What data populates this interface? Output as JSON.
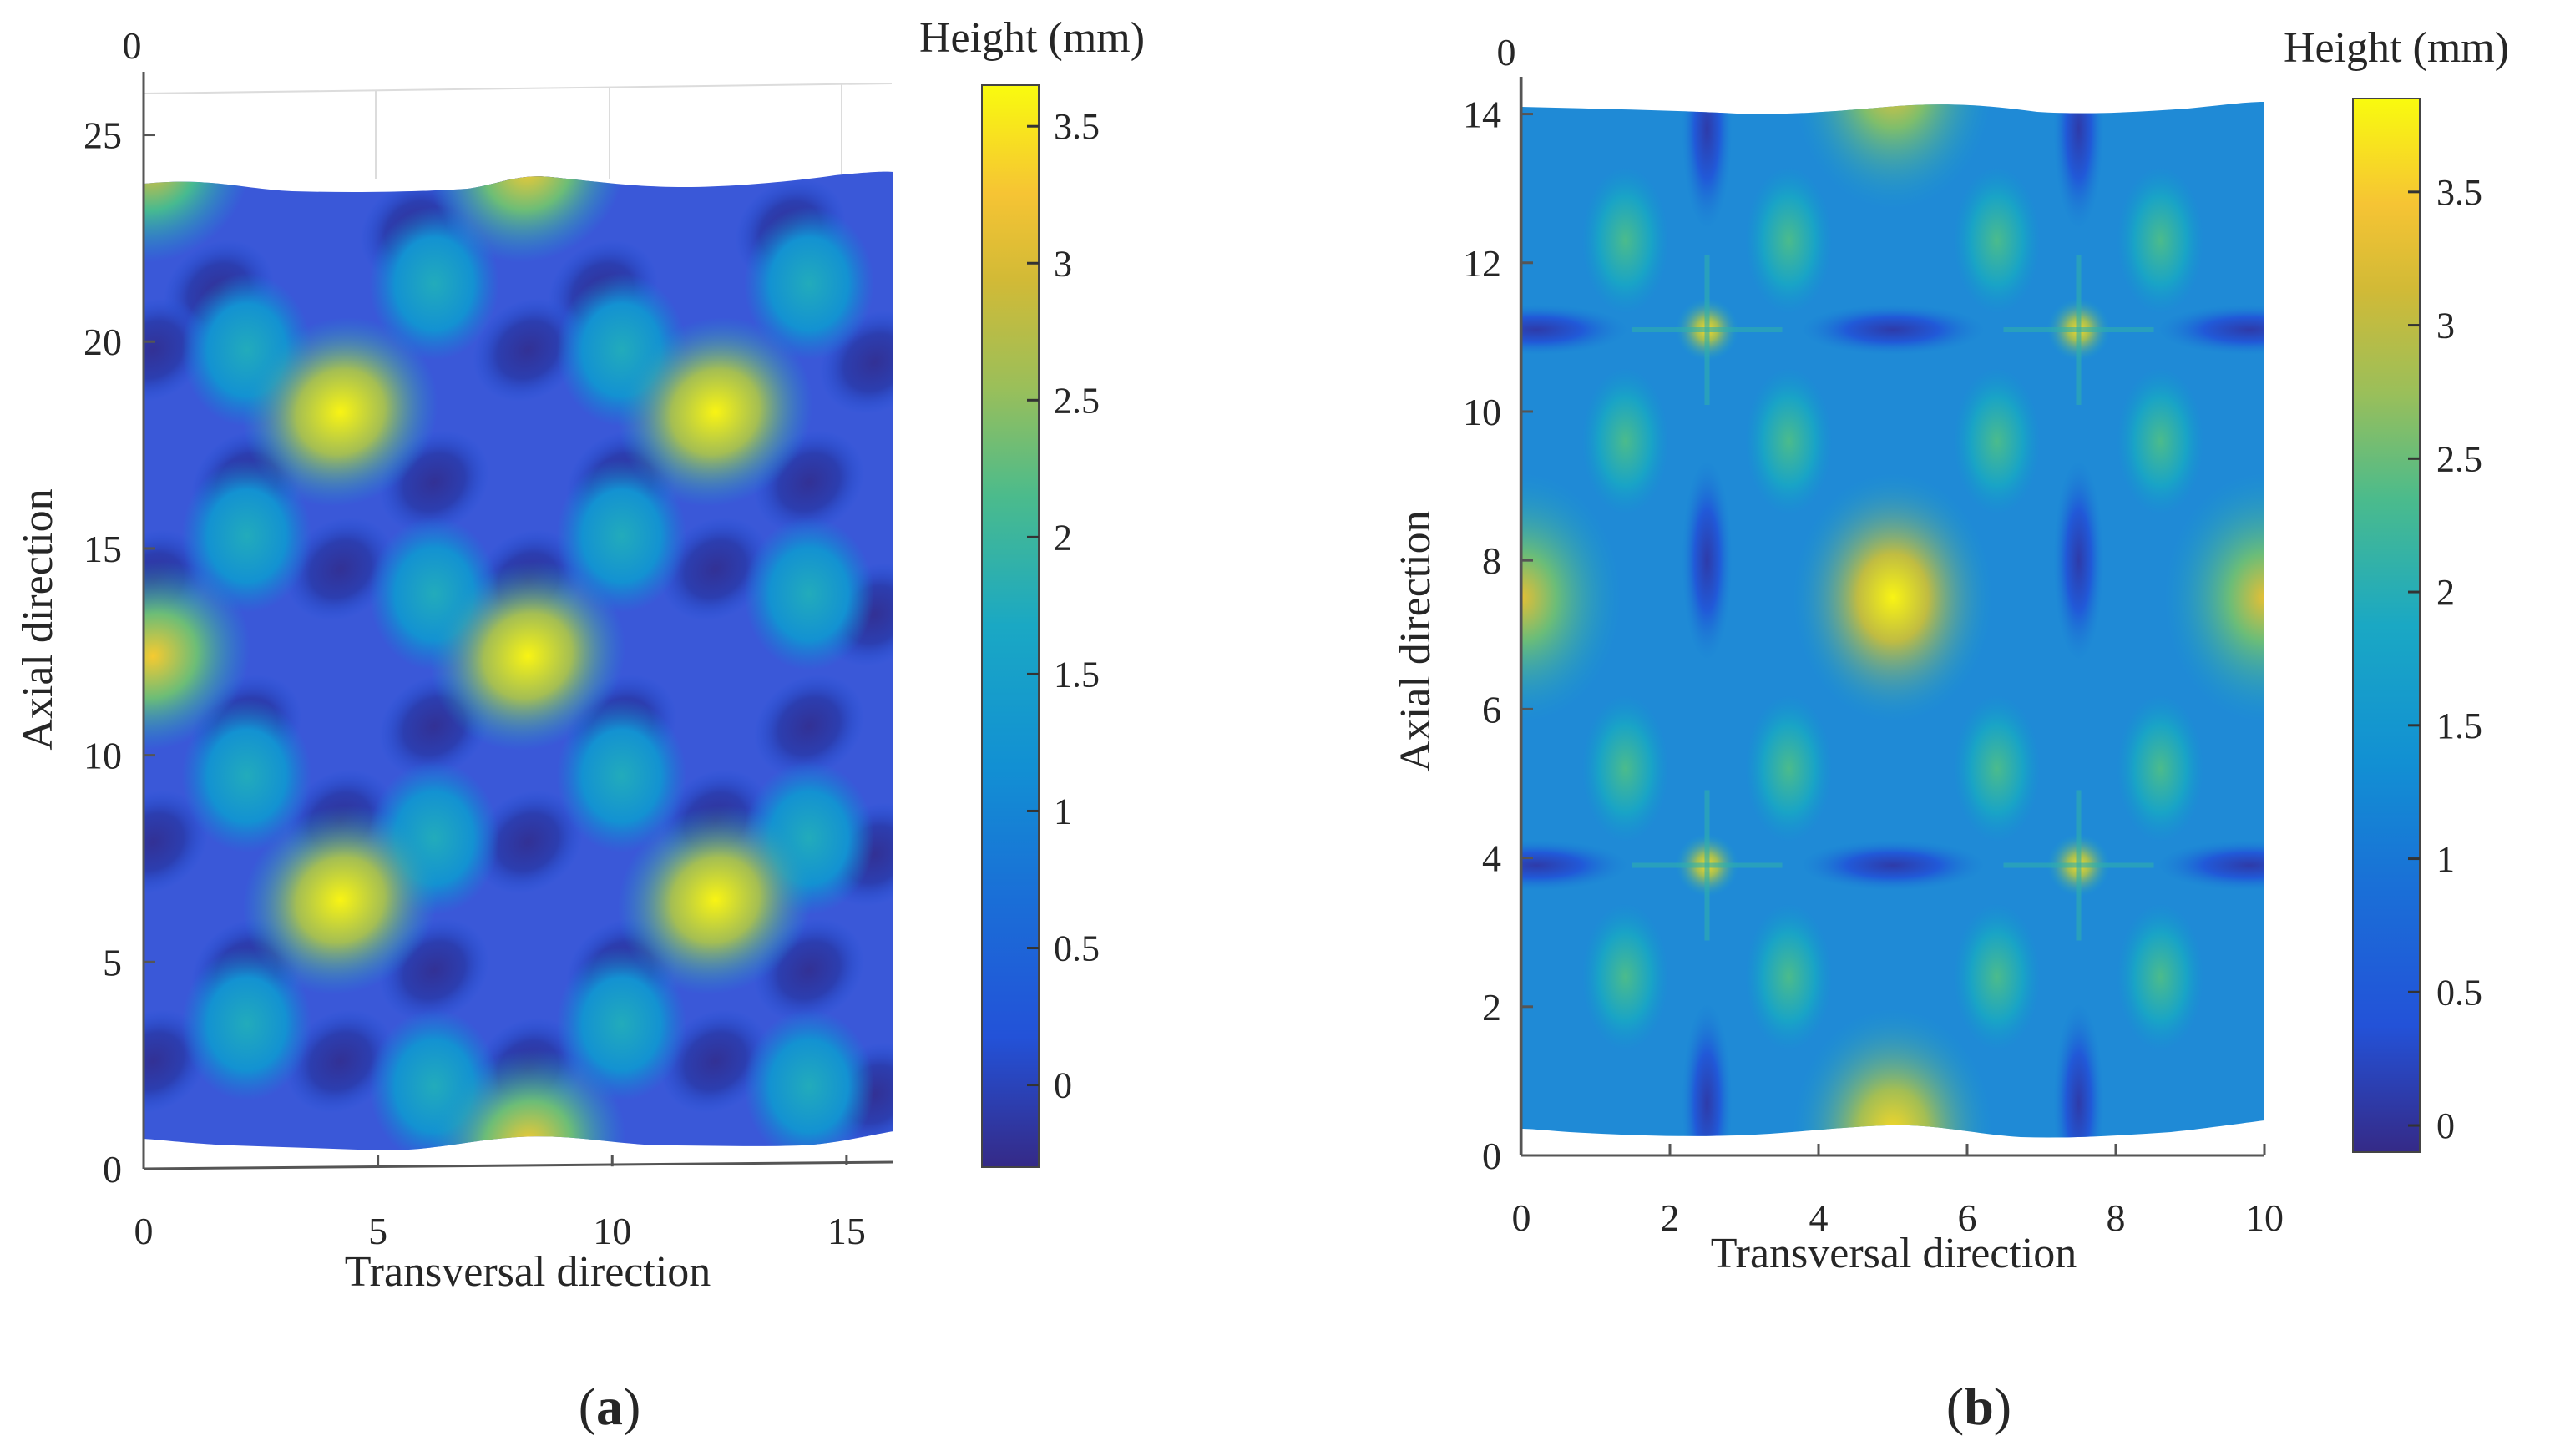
{
  "chart_data": [
    {
      "type": "heatmap",
      "panel_label": "(a)",
      "xlabel": "Transversal direction",
      "ylabel": "Axial direction",
      "x_axis_origin_label": "0",
      "xlim": [
        0,
        16
      ],
      "ylim": [
        0,
        26
      ],
      "x_ticks": [
        0,
        5,
        10,
        15
      ],
      "y_ticks": [
        0,
        5,
        10,
        15,
        20,
        25
      ],
      "colorbar": {
        "title": "Height (mm)",
        "range": [
          -0.3,
          3.65
        ],
        "ticks": [
          0,
          0.5,
          1,
          1.5,
          2,
          2.5,
          3,
          3.5
        ],
        "tick_labels": [
          "0",
          "0.5",
          "1",
          "1.5",
          "2",
          "2.5",
          "3",
          "3.5"
        ],
        "colormap": "parula"
      },
      "surface": {
        "x_range": [
          0,
          15.9
        ],
        "y_bottom": 0.7,
        "y_top": 23.5,
        "pattern": "diagonal crossing sinusoidal ridges",
        "peaks": [
          {
            "x": 4.2,
            "y": 18.3,
            "value": 3.6
          },
          {
            "x": 12.2,
            "y": 18.3,
            "value": 3.6
          },
          {
            "x": 8.2,
            "y": 12.4,
            "value": 3.6
          },
          {
            "x": 4.2,
            "y": 6.5,
            "value": 3.6
          },
          {
            "x": 12.2,
            "y": 6.5,
            "value": 3.6
          },
          {
            "x": 0.2,
            "y": 12.4,
            "value": 3.3
          },
          {
            "x": 8.2,
            "y": 0.6,
            "value": 3.3
          },
          {
            "x": 8.2,
            "y": 24.2,
            "value": 3.3
          },
          {
            "x": 0.2,
            "y": 24.2,
            "value": 3.1
          }
        ],
        "min_value": -0.3
      }
    },
    {
      "type": "heatmap",
      "panel_label": "(b)",
      "xlabel": "Transversal direction",
      "ylabel": "Axial direction",
      "x_axis_origin_label": "0",
      "xlim": [
        0,
        10
      ],
      "ylim": [
        0,
        14.5
      ],
      "x_ticks": [
        0,
        2,
        4,
        6,
        8,
        10
      ],
      "y_ticks": [
        0,
        2,
        4,
        6,
        8,
        10,
        12,
        14
      ],
      "colorbar": {
        "title": "Height (mm)",
        "range": [
          -0.1,
          3.85
        ],
        "ticks": [
          0,
          0.5,
          1,
          1.5,
          2,
          2.5,
          3,
          3.5
        ],
        "tick_labels": [
          "0",
          "0.5",
          "1",
          "1.5",
          "2",
          "2.5",
          "3",
          "3.5"
        ],
        "colormap": "parula"
      },
      "surface": {
        "x_range": [
          0,
          10
        ],
        "y_bottom": 0.3,
        "y_top": 14.3,
        "pattern": "orthogonal grid of peaks with cross-shaped valleys",
        "peaks": [
          {
            "x": 5.0,
            "y": 7.5,
            "value": 3.8
          },
          {
            "x": 0.0,
            "y": 7.5,
            "value": 3.3
          },
          {
            "x": 10.0,
            "y": 7.5,
            "value": 3.3
          },
          {
            "x": 5.0,
            "y": 0.3,
            "value": 3.6
          },
          {
            "x": 5.0,
            "y": 14.4,
            "value": 3.4
          },
          {
            "x": 2.5,
            "y": 11.1,
            "value": 3.6
          },
          {
            "x": 7.5,
            "y": 11.1,
            "value": 3.6
          },
          {
            "x": 2.5,
            "y": 3.9,
            "value": 3.6
          },
          {
            "x": 7.5,
            "y": 3.9,
            "value": 3.6
          }
        ],
        "min_value": -0.1
      }
    }
  ]
}
